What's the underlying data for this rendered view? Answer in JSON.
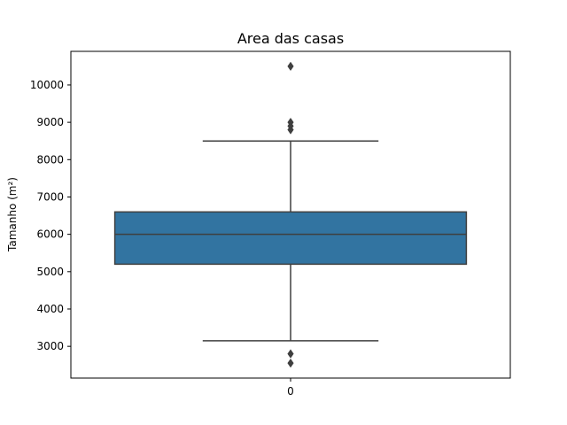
{
  "chart_data": {
    "type": "box",
    "title": "Area das casas",
    "xlabel": "",
    "ylabel": "Tamanho (m²)",
    "categories": [
      "0"
    ],
    "ylim": [
      2150,
      10900
    ],
    "yticks": [
      3000,
      4000,
      5000,
      6000,
      7000,
      8000,
      9000,
      10000
    ],
    "grid": false,
    "boxes": [
      {
        "category": "0",
        "whisker_low": 3150,
        "q1": 5200,
        "median": 6000,
        "q3": 6600,
        "whisker_high": 8500,
        "outliers": [
          10500,
          9000,
          8900,
          8800,
          2800,
          2550
        ]
      }
    ],
    "colors": {
      "box_fill": "#3274a1",
      "line": "#3f3f3f",
      "axis": "#000000"
    }
  }
}
